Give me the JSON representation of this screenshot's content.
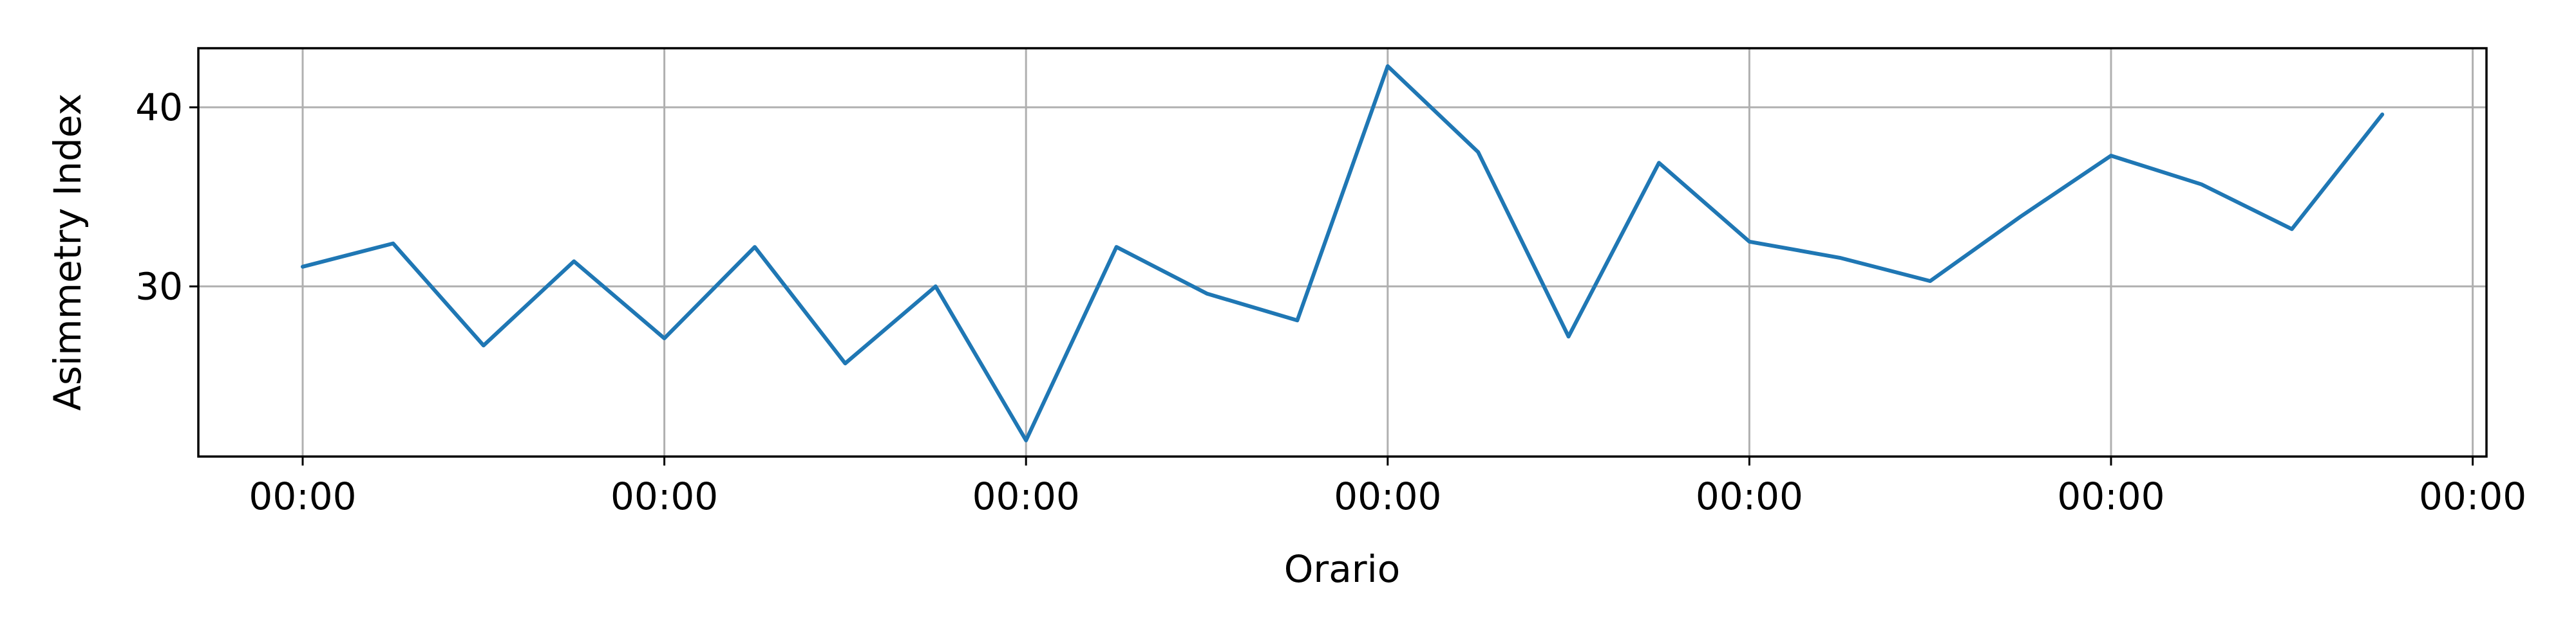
{
  "chart_data": {
    "type": "line",
    "title": "",
    "xlabel": "Orario",
    "ylabel": "Asimmetry Index",
    "x_tick_labels": [
      "00:00",
      "00:00",
      "00:00",
      "00:00",
      "00:00",
      "00:00",
      "00:00"
    ],
    "y_ticks": [
      30,
      40
    ],
    "ylim": [
      20.5,
      43.3
    ],
    "grid": true,
    "series": [
      {
        "color": "#1f77b4",
        "values": [
          31.1,
          32.4,
          26.7,
          31.4,
          27.1,
          32.2,
          25.7,
          30.0,
          21.4,
          32.2,
          29.6,
          28.1,
          42.3,
          37.5,
          27.2,
          36.9,
          32.5,
          31.6,
          30.3,
          33.9,
          37.3,
          35.7,
          33.2,
          39.6
        ]
      }
    ]
  }
}
